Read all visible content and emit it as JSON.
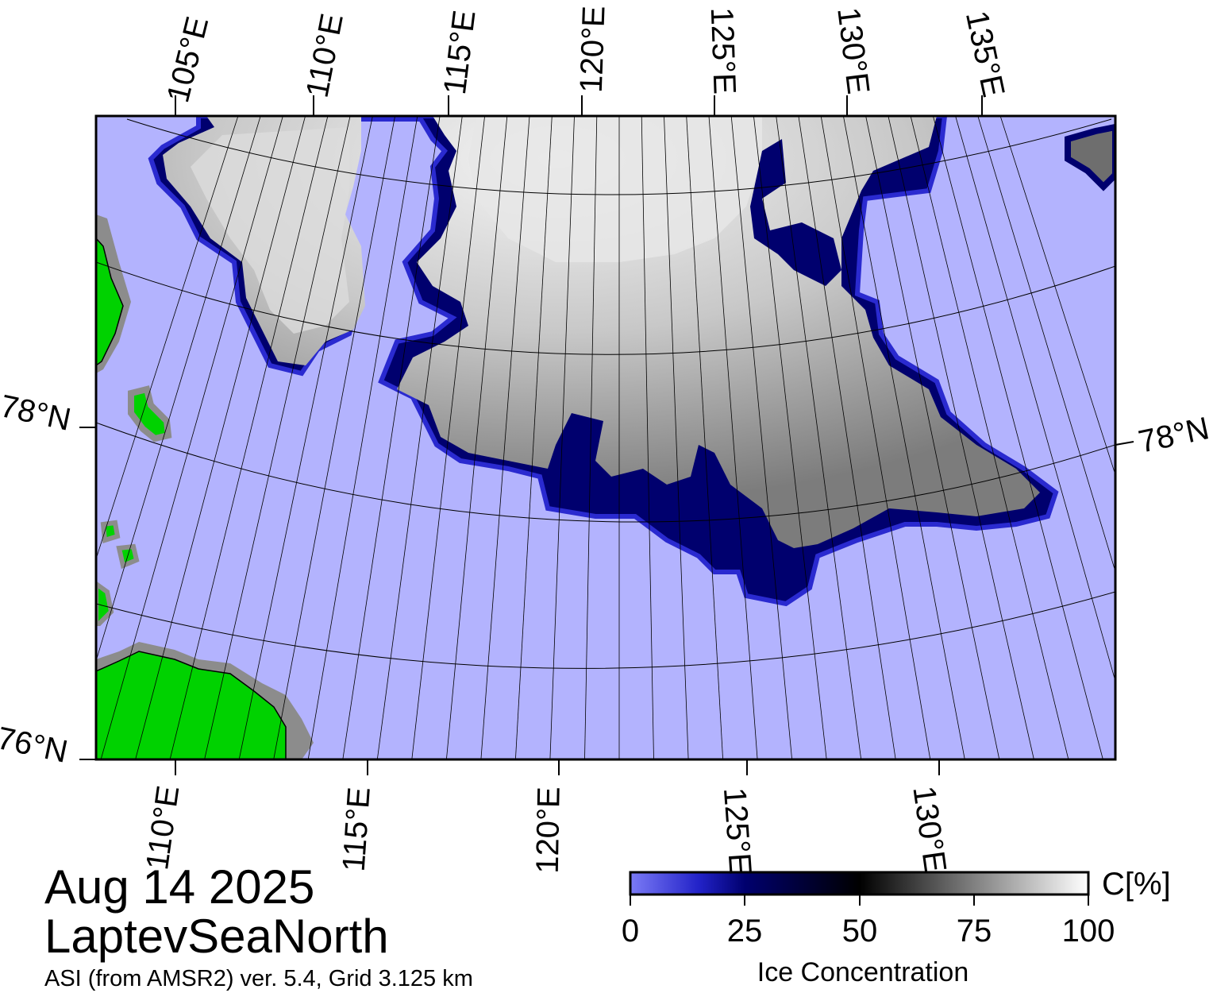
{
  "map": {
    "date": "Aug 14 2025",
    "region": "LaptevSeaNorth",
    "product": "ASI (from AMSR2) ver. 5.4,  Grid 3.125 km",
    "colors": {
      "open_water": "#b3b3fe",
      "land": "#00d200",
      "coast_mask": "#8c8c8c",
      "ice_high": "#f2f2f2",
      "ice_mid": "#808080",
      "ice_edge": "#00006e"
    },
    "top_lon_labels": [
      "105°E",
      "110°E",
      "115°E",
      "120°E",
      "125°E",
      "130°E",
      "135°E"
    ],
    "bottom_lon_labels": [
      "110°E",
      "115°E",
      "120°E",
      "125°E",
      "130°E"
    ],
    "lat_labels": {
      "left_upper": "78°N",
      "left_lower": "76°N",
      "right": "78°N"
    }
  },
  "colorbar": {
    "unit": "C[%]",
    "title": "Ice Concentration",
    "ticks": [
      "0",
      "25",
      "50",
      "75",
      "100"
    ],
    "range": [
      0,
      100
    ]
  }
}
